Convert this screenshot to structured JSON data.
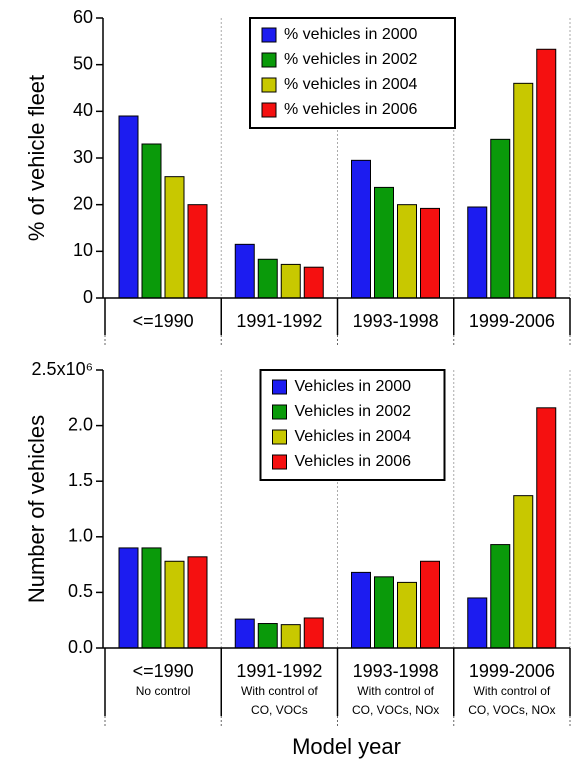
{
  "chart_data": [
    {
      "type": "bar",
      "ylabel": "% of vehicle fleet",
      "categories": [
        "<=1990",
        "1991-1992",
        "1993-1998",
        "1999-2006"
      ],
      "series": [
        {
          "name": "% vehicles in 2000",
          "color": "#1c1cf0",
          "values": [
            39,
            11.5,
            29.5,
            19.5
          ]
        },
        {
          "name": "% vehicles in 2002",
          "color": "#0a9a0a",
          "values": [
            33,
            8.3,
            23.7,
            34
          ]
        },
        {
          "name": "% vehicles in 2004",
          "color": "#c8c800",
          "values": [
            26,
            7.2,
            20,
            46
          ]
        },
        {
          "name": "% vehicles in 2006",
          "color": "#f51010",
          "values": [
            20,
            6.6,
            19.2,
            53.3
          ]
        }
      ],
      "ylim": [
        0,
        60
      ],
      "yticks": [
        0,
        10,
        20,
        30,
        40,
        50,
        60
      ],
      "legend": "upper center"
    },
    {
      "type": "bar",
      "ylabel": "Number of vehicles",
      "xlabel": "Model year",
      "categories": [
        "<=1990",
        "1991-1992",
        "1993-1998",
        "1999-2006"
      ],
      "sublabels": [
        [
          "No control"
        ],
        [
          "With control of",
          "CO, VOCs"
        ],
        [
          "With control of",
          "CO, VOCs, NOx"
        ],
        [
          "With control of",
          "CO, VOCs, NOx"
        ]
      ],
      "series": [
        {
          "name": "Vehicles in 2000",
          "color": "#1c1cf0",
          "values": [
            900000,
            260000,
            680000,
            450000
          ]
        },
        {
          "name": "Vehicles in 2002",
          "color": "#0a9a0a",
          "values": [
            900000,
            220000,
            640000,
            930000
          ]
        },
        {
          "name": "Vehicles in 2004",
          "color": "#c8c800",
          "values": [
            780000,
            210000,
            590000,
            1370000
          ]
        },
        {
          "name": "Vehicles in 2006",
          "color": "#f51010",
          "values": [
            820000,
            270000,
            780000,
            2160000
          ]
        }
      ],
      "ylim": [
        0,
        2500000
      ],
      "yticks": [
        {
          "value": 0,
          "label": "0.0"
        },
        {
          "value": 500000,
          "label": "0.5"
        },
        {
          "value": 1000000,
          "label": "1.0"
        },
        {
          "value": 1500000,
          "label": "1.5"
        },
        {
          "value": 2000000,
          "label": "2.0"
        },
        {
          "value": 2500000,
          "label": "2.5x10⁶"
        }
      ],
      "legend": "upper center"
    }
  ]
}
